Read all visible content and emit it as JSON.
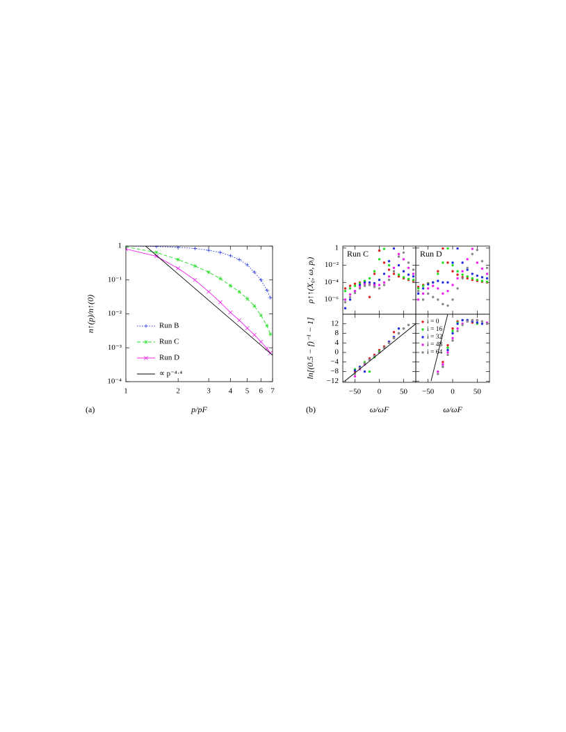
{
  "chart_data": [
    {
      "type": "line",
      "logx": true,
      "logy": true,
      "legend": "lower left",
      "ylabel": "n↑(p)/n↑(0)",
      "xlabel": "p/pF",
      "panel_label": "(a)",
      "xlim": [
        1,
        7
      ],
      "ylim": [
        0.0001,
        1
      ],
      "xticks": [
        1,
        2,
        3,
        4,
        5,
        6,
        7
      ],
      "yticks": [
        1,
        {
          "value": 0.1,
          "label": "10⁻¹"
        },
        {
          "value": 0.01,
          "label": "10⁻²"
        },
        {
          "value": 0.001,
          "label": "10⁻³"
        },
        {
          "value": 0.0001,
          "label": "10⁻⁴"
        }
      ],
      "x": [
        1,
        1.5,
        2,
        2.5,
        3,
        3.5,
        4,
        4.5,
        5,
        5.5,
        6,
        6.5,
        6.8
      ],
      "series": [
        {
          "name": "Run B",
          "color": "#1f2fe0",
          "dash": "dotted",
          "marker": "+",
          "values": [
            1,
            0.97,
            0.92,
            0.85,
            0.75,
            0.65,
            0.52,
            0.4,
            0.28,
            0.17,
            0.1,
            0.05,
            0.03
          ]
        },
        {
          "name": "Run C",
          "color": "#22dd22",
          "dash": "dashed",
          "marker": "*",
          "values": [
            0.95,
            0.65,
            0.4,
            0.26,
            0.17,
            0.11,
            0.068,
            0.045,
            0.028,
            0.017,
            0.009,
            0.0045,
            0.0025
          ]
        },
        {
          "name": "Run D",
          "color": "#ee22ee",
          "dash": "solid",
          "marker": "x",
          "values": [
            0.82,
            0.5,
            0.22,
            0.1,
            0.045,
            0.022,
            0.011,
            0.0065,
            0.0038,
            0.0024,
            0.0015,
            0.00095,
            0.0007
          ]
        },
        {
          "name": "∝ p⁻⁴·⁴",
          "color": "#000000",
          "dash": "solid",
          "x": [
            1.3,
            7
          ],
          "values": [
            1,
            0.0006
          ]
        }
      ]
    },
    {
      "type": "scatter",
      "logy": true,
      "annotation": "Run C",
      "ylabel": "ρ↑↑(X₀; ω, pᵢ)",
      "xlim": [
        -75,
        75
      ],
      "ylim": [
        2e-08,
        1.7
      ],
      "yticks": [
        1,
        {
          "value": 0.01,
          "label": "10⁻²"
        },
        {
          "value": 0.0001,
          "label": "10⁻⁴"
        },
        {
          "value": 1e-06,
          "label": "10⁻⁶"
        }
      ],
      "x": [
        -70,
        -60,
        -50,
        -40,
        -30,
        -20,
        -10,
        0,
        10,
        20,
        30,
        40,
        50,
        60,
        70
      ],
      "series": [
        {
          "color": "#e02020",
          "values": [
            2e-05,
            4e-05,
            7e-05,
            0.0001,
            0.0001,
            2e-06,
            0.001,
            0.5,
            0.02,
            0.003,
            0.001,
            0.0005,
            0.0003,
            0.0002,
            0.00015
          ]
        },
        {
          "color": "#22dd22",
          "values": [
            1e-05,
            2e-05,
            4e-05,
            8e-05,
            0.00015,
            0.0003,
            0.002,
            0.05,
            0.8,
            0.01,
            0.002,
            0.0008,
            0.0004,
            0.00025,
            0.0002
          ]
        },
        {
          "color": "#1f2fe0",
          "values": [
            1e-07,
            1e-06,
            1e-05,
            5e-05,
            0.0001,
            0.0001,
            8e-05,
            0.0002,
            0.001,
            0.03,
            0.9,
            0.01,
            0.002,
            0.0008,
            0.0005
          ]
        },
        {
          "color": "#ee22ee",
          "values": [
            1e-06,
            4e-06,
            1e-05,
            3e-05,
            6e-05,
            6e-05,
            5e-05,
            5e-05,
            0.0001,
            0.0005,
            0.005,
            0.2,
            0.05,
            0.005,
            0.001
          ]
        },
        {
          "color": "#888888",
          "values": [
            5e-07,
            2e-06,
            6e-06,
            2e-05,
            4e-05,
            5e-05,
            3e-05,
            2e-05,
            5e-05,
            0.0002,
            0.002,
            0.1,
            0.3,
            0.02,
            0.003
          ]
        }
      ]
    },
    {
      "type": "scatter",
      "logy": true,
      "annotation": "Run D",
      "xlim": [
        -75,
        75
      ],
      "ylim": [
        2e-08,
        1.7
      ],
      "x": [
        -70,
        -60,
        -50,
        -40,
        -30,
        -20,
        -10,
        0,
        10,
        20,
        30,
        40,
        50,
        60,
        70
      ],
      "series": [
        {
          "color": "#e02020",
          "values": [
            3e-05,
            5e-05,
            8e-05,
            0.0001,
            0.002,
            0.9,
            0.02,
            0.002,
            0.0008,
            0.0004,
            0.0003,
            0.0002,
            0.00015,
            0.00012,
            0.0001
          ]
        },
        {
          "color": "#22dd22",
          "values": [
            2e-05,
            4e-05,
            7e-05,
            0.0001,
            0.001,
            0.02,
            0.9,
            0.01,
            0.002,
            0.0008,
            0.0005,
            0.0003,
            0.0002,
            0.00015,
            0.00012
          ]
        },
        {
          "color": "#1f2fe0",
          "values": [
            5e-06,
            2e-05,
            6e-05,
            0.0001,
            0.00015,
            0.0001,
            0.0001,
            0.02,
            0.9,
            0.02,
            0.003,
            0.001,
            0.0006,
            0.0004,
            0.0003
          ]
        },
        {
          "color": "#ee22ee",
          "values": [
            1e-06,
            5e-06,
            2e-05,
            4e-05,
            2e-05,
            5e-06,
            1e-05,
            5e-05,
            0.0003,
            0.002,
            0.05,
            0.8,
            0.02,
            0.004,
            0.001
          ]
        },
        {
          "color": "#888888",
          "values": [
            1e-05,
            1e-06,
            5e-06,
            2e-06,
            1e-06,
            3e-07,
            2e-07,
            1e-06,
            2e-05,
            0.0003,
            0.005,
            0.2,
            0.6,
            0.03,
            0.005
          ]
        }
      ]
    },
    {
      "type": "scatter",
      "ylabel": "ln[(0.5 − f)⁻¹ − 1]",
      "xlabel": "ω/ωF",
      "panel_label": "(b)",
      "xlim": [
        -75,
        75
      ],
      "ylim": [
        -12.5,
        16
      ],
      "xticks": [
        {
          "value": -50,
          "label": "−50"
        },
        0,
        50
      ],
      "yticks": [
        12,
        8,
        4,
        0,
        {
          "value": -4,
          "label": "−4"
        },
        {
          "value": -8,
          "label": "−8"
        },
        {
          "value": -12,
          "label": "−12"
        }
      ],
      "x": [
        -70,
        -60,
        -50,
        -40,
        -30,
        -20,
        -10,
        0,
        10,
        20,
        30,
        40,
        50,
        60,
        70
      ],
      "series": [
        {
          "color": "#e02020",
          "values": [
            null,
            null,
            -8,
            -6.5,
            -4.5,
            -2.5,
            -1,
            1,
            2.5,
            4.5,
            8.5,
            null,
            null,
            null,
            null
          ]
        },
        {
          "color": "#22dd22",
          "values": [
            null,
            null,
            -7,
            -6,
            -4,
            -8,
            -2,
            0.5,
            2,
            4,
            6,
            8,
            null,
            null,
            null
          ]
        },
        {
          "color": "#1f2fe0",
          "values": [
            null,
            null,
            -7.5,
            -6,
            -8,
            -3,
            -1.5,
            0,
            2,
            4.5,
            6.5,
            10,
            null,
            null,
            null
          ]
        },
        {
          "color": "#ee22ee",
          "values": [
            null,
            null,
            -10,
            -7,
            -5,
            -3,
            -1.5,
            0,
            2,
            4,
            6,
            8,
            10,
            null,
            null
          ]
        },
        {
          "color": "#888888",
          "values": [
            null,
            null,
            -9,
            -6.5,
            -4.5,
            -3,
            -1.5,
            0,
            2,
            4,
            6,
            8,
            10,
            11.5,
            null
          ]
        }
      ],
      "fit": {
        "color": "#000000",
        "x": [
          -71,
          75
        ],
        "values": [
          -12,
          12
        ]
      }
    },
    {
      "type": "scatter",
      "xlabel": "ω/ωF",
      "legend": "upper left",
      "xlim": [
        -75,
        75
      ],
      "ylim": [
        -12.5,
        16
      ],
      "xticks": [
        {
          "value": -50,
          "label": "−50"
        },
        0,
        50
      ],
      "x": [
        -70,
        -60,
        -50,
        -40,
        -30,
        -20,
        -10,
        0,
        10,
        20,
        30,
        40,
        50,
        60,
        70
      ],
      "series": [
        {
          "name": "i = 0",
          "color": "#e02020",
          "values": [
            null,
            null,
            null,
            null,
            null,
            -4,
            3,
            10,
            13,
            13.5,
            13,
            12.5,
            null,
            null,
            null
          ]
        },
        {
          "name": "i = 16",
          "color": "#22dd22",
          "values": [
            null,
            null,
            null,
            null,
            null,
            -5,
            2,
            9,
            12.5,
            13.5,
            13.5,
            13,
            12,
            null,
            null
          ]
        },
        {
          "name": "i = 32",
          "color": "#1f2fe0",
          "values": [
            null,
            null,
            null,
            null,
            null,
            -6,
            1,
            8,
            12,
            13.5,
            13.5,
            13,
            12.5,
            12,
            null
          ]
        },
        {
          "name": "i = 48",
          "color": "#ee22ee",
          "values": [
            null,
            null,
            null,
            null,
            -8,
            -5,
            0,
            6,
            10,
            12,
            13,
            13.5,
            13.5,
            13,
            12.5
          ]
        },
        {
          "name": "i = 64",
          "color": "#888888",
          "values": [
            null,
            null,
            null,
            null,
            -9,
            -6,
            -1,
            5,
            9,
            11.5,
            13,
            13.5,
            13.5,
            13,
            12
          ]
        }
      ],
      "fit": {
        "color": "#000000",
        "x": [
          -44,
          -10
        ],
        "values": [
          -12,
          16
        ]
      }
    }
  ]
}
